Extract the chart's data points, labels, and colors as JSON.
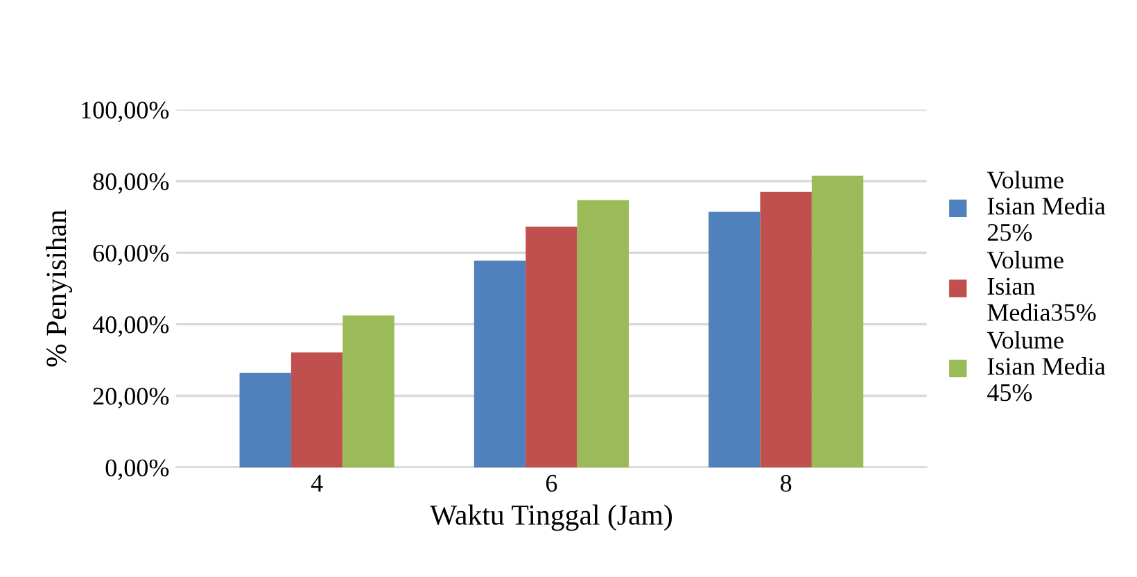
{
  "chart_data": {
    "type": "bar",
    "xlabel": "Waktu Tinggal (Jam)",
    "ylabel": "% Penyisihan",
    "categories": [
      "4",
      "6",
      "8"
    ],
    "series": [
      {
        "name": "Volume\nIsian Media\n25%",
        "color": "#4f81bd",
        "values": [
          26.4,
          57.8,
          71.4
        ]
      },
      {
        "name": "Volume\nIsian\nMedia35%",
        "color": "#c0504d",
        "values": [
          32.1,
          67.3,
          77.0
        ]
      },
      {
        "name": "Volume\nIsian Media\n45%",
        "color": "#9bbb59",
        "values": [
          42.5,
          74.7,
          81.5
        ]
      }
    ],
    "ylim": [
      0,
      100
    ],
    "yticks": [
      {
        "value": 0,
        "label": "0,00%"
      },
      {
        "value": 20,
        "label": "20,00%"
      },
      {
        "value": 40,
        "label": "40,00%"
      },
      {
        "value": 60,
        "label": "60,00%"
      },
      {
        "value": 80,
        "label": "80,00%"
      },
      {
        "value": 100,
        "label": "100,00%"
      }
    ],
    "grid": "y",
    "legend": "right"
  }
}
